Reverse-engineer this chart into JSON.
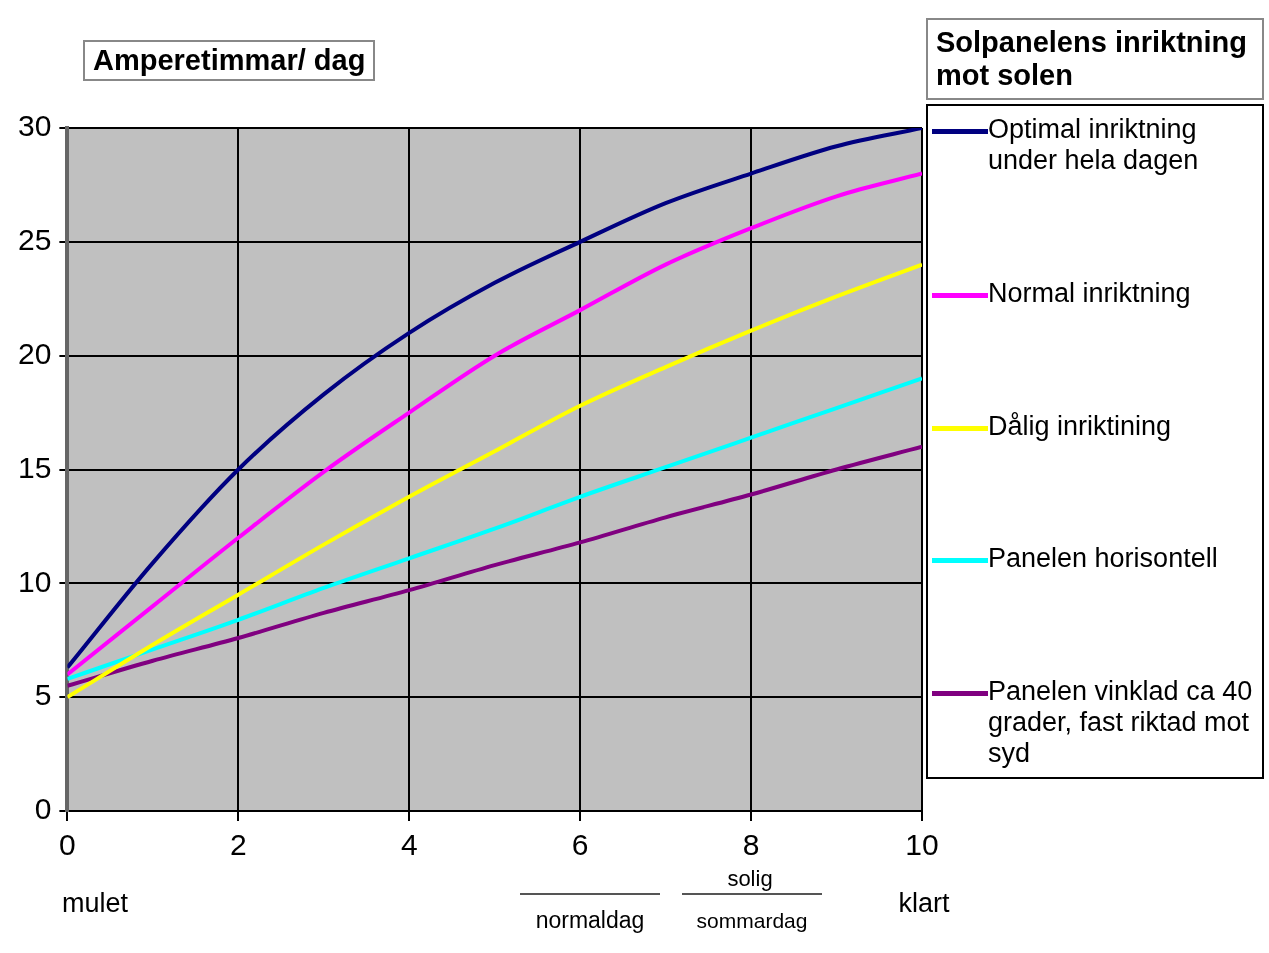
{
  "chart_data": {
    "type": "line",
    "ylabel": "Amperetimmar/ dag",
    "legend_title": "Solpanelens inriktning mot solen",
    "x": [
      0,
      1,
      2,
      3,
      4,
      5,
      6,
      7,
      8,
      9,
      10
    ],
    "series": [
      {
        "name": "Optimal inriktning under hela dagen",
        "color": "#000080",
        "values": [
          6.3,
          10.9,
          15,
          18.3,
          21,
          23.2,
          25,
          26.7,
          28,
          29.2,
          30
        ]
      },
      {
        "name": "Normal inriktning",
        "color": "#ff00ff",
        "values": [
          6,
          9,
          12,
          14.9,
          17.5,
          20,
          22,
          24,
          25.6,
          27,
          28
        ]
      },
      {
        "name": "Dålig inriktining",
        "color": "#ffff00",
        "values": [
          5,
          7.3,
          9.5,
          11.7,
          13.8,
          15.8,
          17.8,
          19.5,
          21.1,
          22.6,
          24
        ]
      },
      {
        "name": "Panelen horisontell",
        "color": "#00ffff",
        "values": [
          5.8,
          7.1,
          8.4,
          9.8,
          11.1,
          12.4,
          13.8,
          15.1,
          16.4,
          17.7,
          19
        ]
      },
      {
        "name": "Panelen vinklad ca 40 grader, fast riktad mot syd",
        "color": "#800080",
        "values": [
          5.5,
          6.6,
          7.6,
          8.7,
          9.7,
          10.8,
          11.8,
          12.9,
          13.9,
          15,
          16
        ]
      }
    ],
    "xlim": [
      0,
      10
    ],
    "xticks": [
      0,
      2,
      4,
      6,
      8,
      10
    ],
    "ylim": [
      0,
      30
    ],
    "yticks": [
      0,
      5,
      10,
      15,
      20,
      25,
      30
    ],
    "grid": true,
    "legend": "right",
    "marker": "none",
    "line_style": "solid",
    "annotations": [
      "mulet",
      "normaldag",
      "solig",
      "sommardag",
      "klart"
    ]
  }
}
